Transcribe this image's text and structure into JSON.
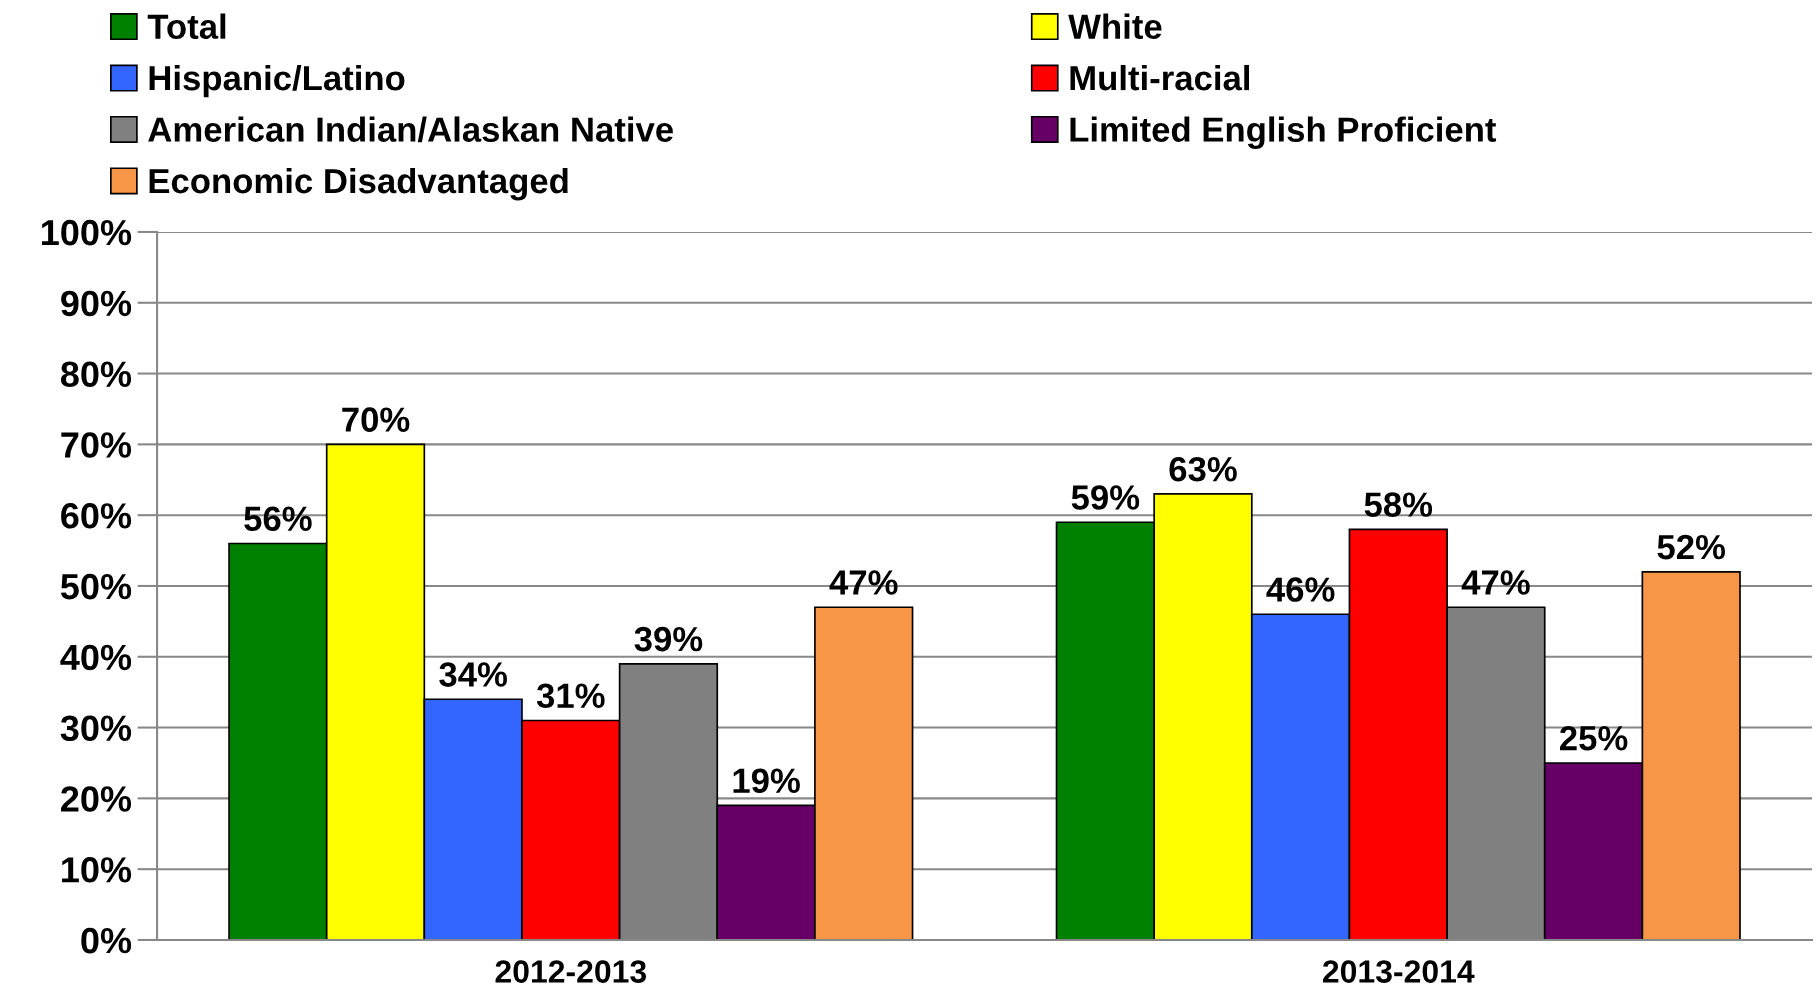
{
  "chart_data": {
    "type": "bar",
    "categories": [
      "2012-2013",
      "2013-2014"
    ],
    "series": [
      {
        "name": "Total",
        "color": "#008000",
        "values": [
          56,
          59
        ],
        "value_labels": [
          "56%",
          "59%"
        ]
      },
      {
        "name": "White",
        "color": "#ffff00",
        "values": [
          70,
          63
        ],
        "value_labels": [
          "70%",
          "63%"
        ]
      },
      {
        "name": "Hispanic/Latino",
        "color": "#3366ff",
        "values": [
          34,
          46
        ],
        "value_labels": [
          "34%",
          "46%"
        ]
      },
      {
        "name": "Multi-racial",
        "color": "#ff0000",
        "values": [
          31,
          58
        ],
        "value_labels": [
          "31%",
          "58%"
        ]
      },
      {
        "name": "American Indian/Alaskan Native",
        "color": "#808080",
        "values": [
          39,
          47
        ],
        "value_labels": [
          "39%",
          "47%"
        ]
      },
      {
        "name": "Limited English Proficient",
        "color": "#660066",
        "values": [
          19,
          25
        ],
        "value_labels": [
          "19%",
          "25%"
        ]
      },
      {
        "name": "Economic Disadvantaged",
        "color": "#f79646",
        "values": [
          47,
          52
        ],
        "value_labels": [
          "47%",
          "52%"
        ]
      }
    ],
    "ylim": [
      0,
      100
    ],
    "yticks": [
      {
        "value": 0,
        "label": "0%"
      },
      {
        "value": 10,
        "label": "10%"
      },
      {
        "value": 20,
        "label": "20%"
      },
      {
        "value": 30,
        "label": "30%"
      },
      {
        "value": 40,
        "label": "40%"
      },
      {
        "value": 50,
        "label": "50%"
      },
      {
        "value": 60,
        "label": "60%"
      },
      {
        "value": 70,
        "label": "70%"
      },
      {
        "value": 80,
        "label": "80%"
      },
      {
        "value": 90,
        "label": "90%"
      },
      {
        "value": 100,
        "label": "100%"
      }
    ],
    "grid": "y",
    "legend": "top"
  }
}
